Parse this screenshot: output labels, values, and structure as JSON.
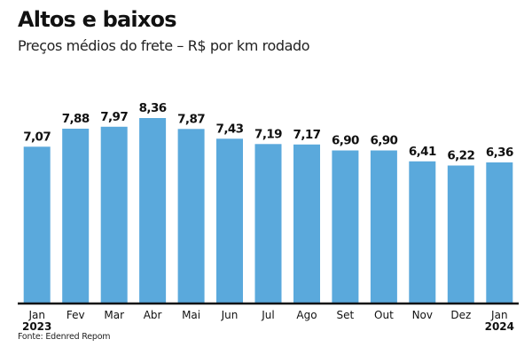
{
  "chart_data": {
    "type": "bar",
    "title": "Altos e baixos",
    "subtitle": "Preços médios do frete – R$ por km rodado",
    "categories": [
      "Jan",
      "Fev",
      "Mar",
      "Abr",
      "Mai",
      "Jun",
      "Jul",
      "Ago",
      "Set",
      "Out",
      "Nov",
      "Dez",
      "Jan"
    ],
    "year_labels": [
      "2023",
      "",
      "",
      "",
      "",
      "",
      "",
      "",
      "",
      "",
      "",
      "",
      "2024"
    ],
    "values": [
      7.07,
      7.88,
      7.97,
      8.36,
      7.87,
      7.43,
      7.19,
      7.17,
      6.9,
      6.9,
      6.41,
      6.22,
      6.36
    ],
    "value_labels": [
      "7,07",
      "7,88",
      "7,97",
      "8,36",
      "7,87",
      "7,43",
      "7,19",
      "7,17",
      "6,90",
      "6,90",
      "6,41",
      "6,22",
      "6,36"
    ],
    "ylim": [
      0,
      8.36
    ],
    "grid": false,
    "bar_color": "#5aa9dc",
    "axis_color": "#111111",
    "source": "Fonte: Edenred Repom"
  }
}
